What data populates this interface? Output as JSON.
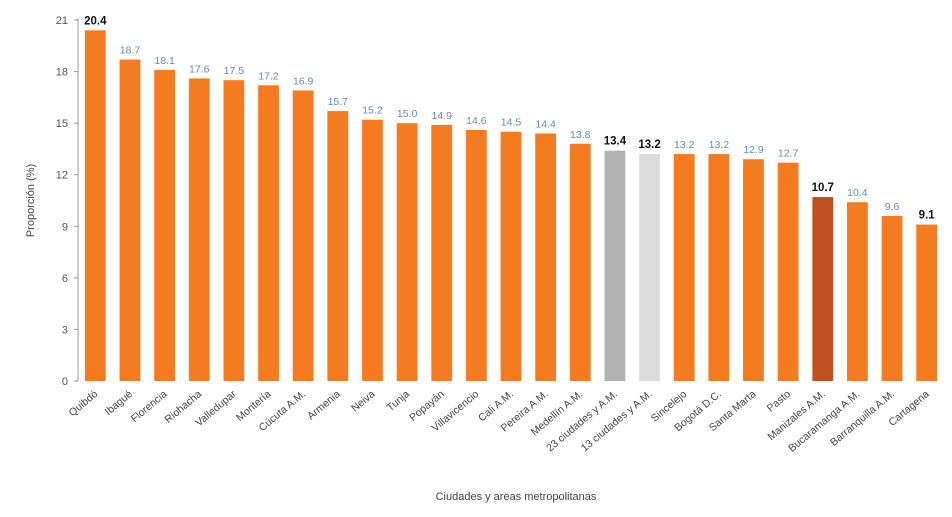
{
  "chart_data": {
    "type": "bar",
    "xlabel": "Ciudades y areas metropolitanas",
    "ylabel": "Proporción (%)",
    "ylim": [
      0,
      21
    ],
    "yticks": [
      0,
      3,
      6,
      9,
      12,
      15,
      18,
      21
    ],
    "grid": false,
    "legend": "none",
    "categories": [
      "Quibdó",
      "Ibagué",
      "Florencia",
      "Riohacha",
      "Valledupar",
      "Montería",
      "Cúcuta A.M.",
      "Armenia",
      "Neiva",
      "Tunja",
      "Popayán",
      "Villavicencio",
      "Cali A.M.",
      "Pereira A.M.",
      "Medellín A.M.",
      "23 ciudades y A.M.",
      "13 ciudades y A.M.",
      "Sincelejo",
      "Bogotá D.C.",
      "Santa Marta",
      "Pasto",
      "Manizales A.M.",
      "Bucaramanga A.M.",
      "Barranquilla A.M.",
      "Cartagena"
    ],
    "values": [
      20.4,
      18.7,
      18.1,
      17.6,
      17.5,
      17.2,
      16.9,
      15.7,
      15.2,
      15.0,
      14.9,
      14.6,
      14.5,
      14.4,
      13.8,
      13.4,
      13.2,
      13.2,
      13.2,
      12.9,
      12.7,
      10.7,
      10.4,
      9.6,
      9.1
    ],
    "value_labels": [
      "20.4",
      "18.7",
      "18.1",
      "17.6",
      "17.5",
      "17.2",
      "16.9",
      "15.7",
      "15.2",
      "15.0",
      "14.9",
      "14.6",
      "14.5",
      "14.4",
      "13.8",
      "13.4",
      "13.2",
      "13.2",
      "13.2",
      "12.9",
      "12.7",
      "10.7",
      "10.4",
      "9.6",
      "9.1"
    ],
    "emphasized": [
      true,
      false,
      false,
      false,
      false,
      false,
      false,
      false,
      false,
      false,
      false,
      false,
      false,
      false,
      false,
      true,
      true,
      false,
      false,
      false,
      false,
      true,
      false,
      false,
      true
    ],
    "bar_colors": [
      "#f47b20",
      "#f47b20",
      "#f47b20",
      "#f47b20",
      "#f47b20",
      "#f47b20",
      "#f47b20",
      "#f47b20",
      "#f47b20",
      "#f47b20",
      "#f47b20",
      "#f47b20",
      "#f47b20",
      "#f47b20",
      "#f47b20",
      "#b3b3b3",
      "#dcdcdc",
      "#f47b20",
      "#f47b20",
      "#f47b20",
      "#f47b20",
      "#c0501f",
      "#f47b20",
      "#f47b20",
      "#f47b20"
    ],
    "colors": {
      "default_bar": "#f47b20",
      "value_label": "#6a87b5",
      "emphasized_label": "#111111",
      "axis": "#999999"
    }
  }
}
